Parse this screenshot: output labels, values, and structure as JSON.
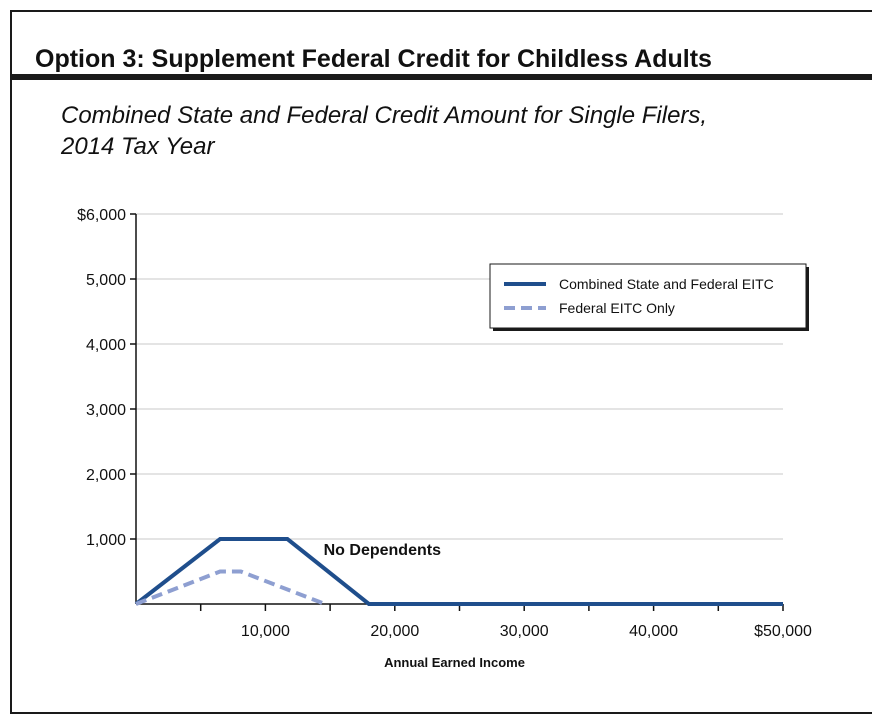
{
  "title": "Option 3: Supplement Federal Credit for Childless Adults",
  "subtitle_lines": [
    "Combined State and Federal Credit Amount for Single Filers,",
    "2014 Tax Year"
  ],
  "colors": {
    "combined": "#1f4e8c",
    "federal": "#8e9fd1",
    "grid": "#c8c8c8",
    "frame": "#1a1a1a"
  },
  "chart_data": {
    "type": "line",
    "title": "",
    "xlabel": "Annual Earned Income",
    "ylabel": "",
    "xlim": [
      0,
      50000
    ],
    "ylim": [
      0,
      6000
    ],
    "grid": true,
    "legend_position": "top-right",
    "y_ticks": [
      {
        "value": 1000,
        "label": "1,000"
      },
      {
        "value": 2000,
        "label": "2,000"
      },
      {
        "value": 3000,
        "label": "3,000"
      },
      {
        "value": 4000,
        "label": "4,000"
      },
      {
        "value": 5000,
        "label": "5,000"
      },
      {
        "value": 6000,
        "label": "$6,000"
      }
    ],
    "x_ticks": [
      {
        "value": 10000,
        "label": "10,000"
      },
      {
        "value": 20000,
        "label": "20,000"
      },
      {
        "value": 30000,
        "label": "30,000"
      },
      {
        "value": 40000,
        "label": "40,000"
      },
      {
        "value": 50000,
        "label": "$50,000"
      }
    ],
    "x_minor_ticks": [
      5000,
      15000,
      25000,
      35000,
      45000
    ],
    "series": [
      {
        "name": "Combined State and Federal EITC",
        "style": "solid",
        "color": "#1f4e8c",
        "points": [
          [
            0,
            0
          ],
          [
            6500,
            1000
          ],
          [
            11700,
            1000
          ],
          [
            18000,
            0
          ],
          [
            50000,
            0
          ]
        ]
      },
      {
        "name": "Federal EITC Only",
        "style": "dashed",
        "color": "#8e9fd1",
        "points": [
          [
            0,
            0
          ],
          [
            6500,
            500
          ],
          [
            8100,
            500
          ],
          [
            14600,
            0
          ]
        ]
      }
    ],
    "annotations": [
      {
        "text": "No Dependents",
        "x": 14500,
        "y": 850
      }
    ]
  }
}
